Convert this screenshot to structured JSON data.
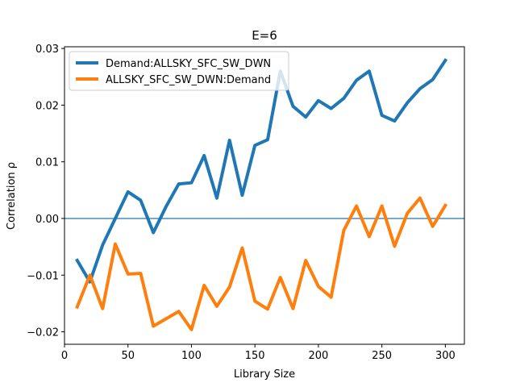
{
  "chart_data": {
    "type": "line",
    "title": "E=6",
    "xlabel": "Library Size",
    "ylabel": "Correlation ρ",
    "xlim": [
      0,
      315
    ],
    "ylim": [
      -0.0222,
      0.0303
    ],
    "xticks": [
      0,
      50,
      100,
      150,
      200,
      250,
      300
    ],
    "xtick_labels": [
      "0",
      "50",
      "100",
      "150",
      "200",
      "250",
      "300"
    ],
    "yticks": [
      -0.02,
      -0.01,
      0.0,
      0.01,
      0.02,
      0.03
    ],
    "ytick_labels": [
      "−0.02",
      "−0.01",
      "0.00",
      "0.01",
      "0.02",
      "0.03"
    ],
    "hline": {
      "y": 0.0,
      "color": "#1f77b4"
    },
    "grid": false,
    "legend_position": "upper-left",
    "x": [
      10,
      20,
      30,
      40,
      50,
      60,
      70,
      80,
      90,
      100,
      110,
      120,
      130,
      140,
      150,
      160,
      170,
      180,
      190,
      200,
      210,
      220,
      230,
      240,
      250,
      260,
      270,
      280,
      290,
      300
    ],
    "series": [
      {
        "name": "Demand:ALLSKY_SFC_SW_DWN",
        "color": "#1f77b4",
        "values": [
          -0.0074,
          -0.0112,
          -0.0047,
          0.0,
          0.0047,
          0.0032,
          -0.0025,
          0.0021,
          0.0061,
          0.0063,
          0.0111,
          0.0036,
          0.0138,
          0.0041,
          0.0129,
          0.0139,
          0.026,
          0.0198,
          0.0179,
          0.0208,
          0.0194,
          0.0212,
          0.0244,
          0.026,
          0.0182,
          0.0172,
          0.0204,
          0.0229,
          0.0245,
          0.0279
        ]
      },
      {
        "name": "ALLSKY_SFC_SW_DWN:Demand",
        "color": "#ff7f0e",
        "values": [
          -0.0156,
          -0.01,
          -0.0159,
          -0.0045,
          -0.0098,
          -0.0097,
          -0.019,
          -0.0177,
          -0.0164,
          -0.0196,
          -0.0118,
          -0.0155,
          -0.0121,
          -0.0052,
          -0.0146,
          -0.016,
          -0.0104,
          -0.0159,
          -0.0074,
          -0.012,
          -0.0139,
          -0.0021,
          0.0022,
          -0.0032,
          0.0022,
          -0.0049,
          0.0009,
          0.0036,
          -0.0014,
          0.0023
        ]
      }
    ]
  }
}
